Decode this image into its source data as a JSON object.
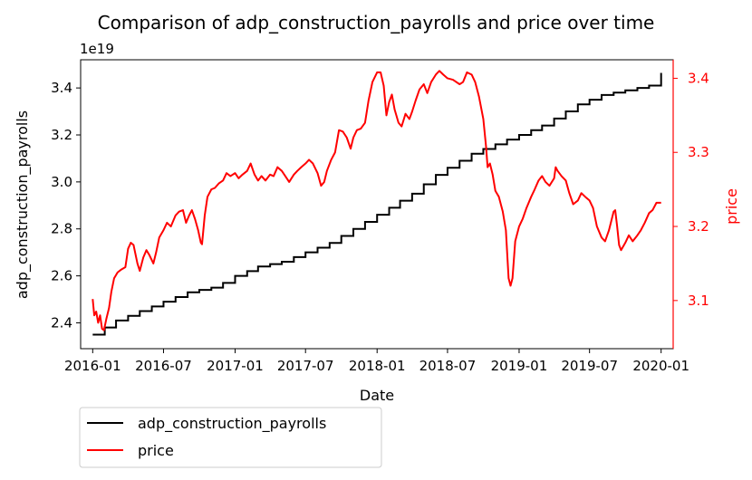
{
  "chart_data": {
    "type": "line",
    "title": "Comparison of adp_construction_payrolls and price over time",
    "xlabel": "Date",
    "x_ticks": [
      "2016-01",
      "2016-07",
      "2017-01",
      "2017-07",
      "2018-01",
      "2018-07",
      "2019-01",
      "2019-07",
      "2020-01"
    ],
    "x_range": [
      "2015-12-01",
      "2020-02-01"
    ],
    "y_left": {
      "label": "adp_construction_payrolls",
      "offset_text": "1e19",
      "scale_factor": 1e+19,
      "ticks": [
        "2.4",
        "2.6",
        "2.8",
        "3.0",
        "3.2",
        "3.4"
      ],
      "range": [
        2.29,
        3.52
      ],
      "color": "#000000"
    },
    "y_right": {
      "label": "price",
      "ticks": [
        "3.1",
        "3.2",
        "3.3",
        "3.4"
      ],
      "range": [
        3.035,
        3.425
      ],
      "color": "#ff0000"
    },
    "grid": false,
    "legend": {
      "placement": "below-left",
      "entries": [
        "adp_construction_payrolls",
        "price"
      ]
    },
    "series": [
      {
        "name": "adp_construction_payrolls",
        "axis": "left",
        "color": "#000000",
        "step_months": [
          "2016-01",
          "2016-02",
          "2016-03",
          "2016-04",
          "2016-05",
          "2016-06",
          "2016-07",
          "2016-08",
          "2016-09",
          "2016-10",
          "2016-11",
          "2016-12",
          "2017-01",
          "2017-02",
          "2017-03",
          "2017-04",
          "2017-05",
          "2017-06",
          "2017-07",
          "2017-08",
          "2017-09",
          "2017-10",
          "2017-11",
          "2017-12",
          "2018-01",
          "2018-02",
          "2018-03",
          "2018-04",
          "2018-05",
          "2018-06",
          "2018-07",
          "2018-08",
          "2018-09",
          "2018-10",
          "2018-11",
          "2018-12",
          "2019-01",
          "2019-02",
          "2019-03",
          "2019-04",
          "2019-05",
          "2019-06",
          "2019-07",
          "2019-08",
          "2019-09",
          "2019-10",
          "2019-11",
          "2019-12"
        ],
        "values": [
          2.35,
          2.38,
          2.41,
          2.43,
          2.45,
          2.47,
          2.49,
          2.51,
          2.53,
          2.54,
          2.55,
          2.57,
          2.6,
          2.62,
          2.64,
          2.65,
          2.66,
          2.68,
          2.7,
          2.72,
          2.74,
          2.77,
          2.8,
          2.83,
          2.86,
          2.89,
          2.92,
          2.95,
          2.99,
          3.03,
          3.06,
          3.09,
          3.12,
          3.14,
          3.16,
          3.18,
          3.2,
          3.22,
          3.24,
          3.27,
          3.3,
          3.33,
          3.35,
          3.37,
          3.38,
          3.39,
          3.4,
          3.41
        ],
        "last_value": 3.46,
        "end_date": "2020-01-01"
      },
      {
        "name": "price",
        "axis": "right",
        "color": "#ff0000",
        "points": [
          [
            "2016-01-01",
            3.102
          ],
          [
            "2016-01-05",
            3.08
          ],
          [
            "2016-01-10",
            3.085
          ],
          [
            "2016-01-15",
            3.07
          ],
          [
            "2016-01-20",
            3.08
          ],
          [
            "2016-01-25",
            3.062
          ],
          [
            "2016-01-30",
            3.06
          ],
          [
            "2016-02-05",
            3.075
          ],
          [
            "2016-02-12",
            3.09
          ],
          [
            "2016-02-18",
            3.112
          ],
          [
            "2016-02-25",
            3.13
          ],
          [
            "2016-03-05",
            3.138
          ],
          [
            "2016-03-15",
            3.142
          ],
          [
            "2016-03-25",
            3.145
          ],
          [
            "2016-04-01",
            3.17
          ],
          [
            "2016-04-08",
            3.178
          ],
          [
            "2016-04-15",
            3.175
          ],
          [
            "2016-04-25",
            3.15
          ],
          [
            "2016-05-01",
            3.14
          ],
          [
            "2016-05-10",
            3.158
          ],
          [
            "2016-05-18",
            3.168
          ],
          [
            "2016-05-25",
            3.162
          ],
          [
            "2016-06-05",
            3.15
          ],
          [
            "2016-06-12",
            3.165
          ],
          [
            "2016-06-20",
            3.185
          ],
          [
            "2016-07-01",
            3.195
          ],
          [
            "2016-07-10",
            3.205
          ],
          [
            "2016-07-20",
            3.2
          ],
          [
            "2016-08-01",
            3.215
          ],
          [
            "2016-08-10",
            3.22
          ],
          [
            "2016-08-20",
            3.222
          ],
          [
            "2016-08-28",
            3.205
          ],
          [
            "2016-09-05",
            3.215
          ],
          [
            "2016-09-12",
            3.222
          ],
          [
            "2016-09-20",
            3.21
          ],
          [
            "2016-09-28",
            3.195
          ],
          [
            "2016-10-05",
            3.178
          ],
          [
            "2016-10-08",
            3.176
          ],
          [
            "2016-10-15",
            3.215
          ],
          [
            "2016-10-22",
            3.24
          ],
          [
            "2016-11-01",
            3.25
          ],
          [
            "2016-11-10",
            3.252
          ],
          [
            "2016-11-20",
            3.258
          ],
          [
            "2016-12-01",
            3.262
          ],
          [
            "2016-12-10",
            3.272
          ],
          [
            "2016-12-20",
            3.268
          ],
          [
            "2017-01-01",
            3.272
          ],
          [
            "2017-01-10",
            3.265
          ],
          [
            "2017-01-20",
            3.27
          ],
          [
            "2017-02-01",
            3.275
          ],
          [
            "2017-02-10",
            3.285
          ],
          [
            "2017-02-20",
            3.27
          ],
          [
            "2017-03-01",
            3.262
          ],
          [
            "2017-03-10",
            3.268
          ],
          [
            "2017-03-20",
            3.262
          ],
          [
            "2017-04-01",
            3.27
          ],
          [
            "2017-04-10",
            3.268
          ],
          [
            "2017-04-20",
            3.28
          ],
          [
            "2017-05-01",
            3.275
          ],
          [
            "2017-05-10",
            3.268
          ],
          [
            "2017-05-20",
            3.26
          ],
          [
            "2017-06-01",
            3.27
          ],
          [
            "2017-06-10",
            3.275
          ],
          [
            "2017-06-20",
            3.28
          ],
          [
            "2017-07-01",
            3.285
          ],
          [
            "2017-07-10",
            3.29
          ],
          [
            "2017-07-20",
            3.285
          ],
          [
            "2017-08-01",
            3.272
          ],
          [
            "2017-08-10",
            3.255
          ],
          [
            "2017-08-18",
            3.26
          ],
          [
            "2017-08-25",
            3.275
          ],
          [
            "2017-09-05",
            3.29
          ],
          [
            "2017-09-15",
            3.3
          ],
          [
            "2017-09-25",
            3.33
          ],
          [
            "2017-10-05",
            3.328
          ],
          [
            "2017-10-15",
            3.32
          ],
          [
            "2017-10-25",
            3.305
          ],
          [
            "2017-11-01",
            3.32
          ],
          [
            "2017-11-10",
            3.33
          ],
          [
            "2017-11-20",
            3.332
          ],
          [
            "2017-12-01",
            3.34
          ],
          [
            "2017-12-10",
            3.37
          ],
          [
            "2017-12-20",
            3.395
          ],
          [
            "2018-01-01",
            3.408
          ],
          [
            "2018-01-10",
            3.408
          ],
          [
            "2018-01-18",
            3.39
          ],
          [
            "2018-01-25",
            3.35
          ],
          [
            "2018-02-01",
            3.368
          ],
          [
            "2018-02-08",
            3.378
          ],
          [
            "2018-02-15",
            3.358
          ],
          [
            "2018-02-25",
            3.34
          ],
          [
            "2018-03-05",
            3.335
          ],
          [
            "2018-03-15",
            3.352
          ],
          [
            "2018-03-25",
            3.345
          ],
          [
            "2018-04-01",
            3.355
          ],
          [
            "2018-04-10",
            3.37
          ],
          [
            "2018-04-20",
            3.385
          ],
          [
            "2018-05-01",
            3.392
          ],
          [
            "2018-05-10",
            3.38
          ],
          [
            "2018-05-20",
            3.395
          ],
          [
            "2018-06-01",
            3.405
          ],
          [
            "2018-06-10",
            3.41
          ],
          [
            "2018-06-20",
            3.405
          ],
          [
            "2018-07-01",
            3.4
          ],
          [
            "2018-07-15",
            3.398
          ],
          [
            "2018-08-01",
            3.392
          ],
          [
            "2018-08-10",
            3.395
          ],
          [
            "2018-08-20",
            3.408
          ],
          [
            "2018-09-01",
            3.405
          ],
          [
            "2018-09-10",
            3.395
          ],
          [
            "2018-09-20",
            3.375
          ],
          [
            "2018-10-01",
            3.345
          ],
          [
            "2018-10-08",
            3.308
          ],
          [
            "2018-10-12",
            3.28
          ],
          [
            "2018-10-18",
            3.285
          ],
          [
            "2018-10-25",
            3.27
          ],
          [
            "2018-11-01",
            3.248
          ],
          [
            "2018-11-10",
            3.24
          ],
          [
            "2018-11-20",
            3.22
          ],
          [
            "2018-11-28",
            3.195
          ],
          [
            "2018-12-05",
            3.13
          ],
          [
            "2018-12-10",
            3.12
          ],
          [
            "2018-12-15",
            3.13
          ],
          [
            "2018-12-22",
            3.18
          ],
          [
            "2019-01-01",
            3.2
          ],
          [
            "2019-01-10",
            3.21
          ],
          [
            "2019-01-20",
            3.225
          ],
          [
            "2019-02-01",
            3.24
          ],
          [
            "2019-02-10",
            3.25
          ],
          [
            "2019-02-20",
            3.262
          ],
          [
            "2019-03-01",
            3.268
          ],
          [
            "2019-03-10",
            3.26
          ],
          [
            "2019-03-20",
            3.255
          ],
          [
            "2019-04-01",
            3.265
          ],
          [
            "2019-04-05",
            3.28
          ],
          [
            "2019-04-10",
            3.275
          ],
          [
            "2019-04-20",
            3.268
          ],
          [
            "2019-05-01",
            3.262
          ],
          [
            "2019-05-10",
            3.245
          ],
          [
            "2019-05-20",
            3.23
          ],
          [
            "2019-06-01",
            3.235
          ],
          [
            "2019-06-10",
            3.245
          ],
          [
            "2019-06-20",
            3.24
          ],
          [
            "2019-07-01",
            3.235
          ],
          [
            "2019-07-10",
            3.225
          ],
          [
            "2019-07-20",
            3.2
          ],
          [
            "2019-08-01",
            3.185
          ],
          [
            "2019-08-10",
            3.18
          ],
          [
            "2019-08-20",
            3.195
          ],
          [
            "2019-09-01",
            3.22
          ],
          [
            "2019-09-05",
            3.222
          ],
          [
            "2019-09-10",
            3.2
          ],
          [
            "2019-09-15",
            3.175
          ],
          [
            "2019-09-20",
            3.168
          ],
          [
            "2019-10-01",
            3.178
          ],
          [
            "2019-10-10",
            3.188
          ],
          [
            "2019-10-20",
            3.18
          ],
          [
            "2019-11-01",
            3.188
          ],
          [
            "2019-11-10",
            3.195
          ],
          [
            "2019-11-20",
            3.205
          ],
          [
            "2019-12-01",
            3.218
          ],
          [
            "2019-12-10",
            3.222
          ],
          [
            "2019-12-20",
            3.232
          ],
          [
            "2020-01-01",
            3.232
          ]
        ]
      }
    ]
  }
}
